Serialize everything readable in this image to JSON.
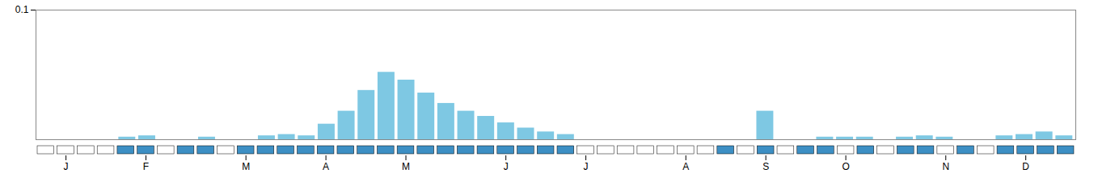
{
  "chart_data": {
    "type": "bar",
    "categories": [
      null,
      "J",
      null,
      null,
      null,
      "F",
      null,
      null,
      null,
      null,
      "M",
      null,
      null,
      null,
      "A",
      null,
      null,
      null,
      "M",
      null,
      null,
      null,
      null,
      "J",
      null,
      null,
      null,
      "J",
      null,
      null,
      null,
      null,
      "A",
      null,
      null,
      null,
      "S",
      null,
      null,
      null,
      "O",
      null,
      null,
      null,
      null,
      "N",
      null,
      null,
      null,
      "D",
      null,
      null
    ],
    "values": [
      0,
      0,
      0,
      0,
      0.002,
      0.003,
      0,
      0,
      0.002,
      0,
      0,
      0.003,
      0.004,
      0.003,
      0.012,
      0.022,
      0.038,
      0.052,
      0.046,
      0.036,
      0.028,
      0.022,
      0.018,
      0.013,
      0.009,
      0.006,
      0.004,
      0,
      0,
      0,
      0,
      0,
      0,
      0,
      0,
      0,
      0.022,
      0,
      0,
      0.002,
      0.002,
      0.002,
      0,
      0.002,
      0.003,
      0.002,
      0,
      0,
      0.003,
      0.004,
      0.006,
      0.003
    ],
    "color": "#7ec8e3",
    "ylim": [
      0,
      0.1
    ],
    "yticks": [
      0.1
    ],
    "indicator": {
      "values": [
        0,
        0,
        0,
        0,
        1,
        1,
        0,
        1,
        1,
        0,
        1,
        1,
        1,
        1,
        1,
        1,
        1,
        1,
        1,
        1,
        1,
        1,
        1,
        1,
        1,
        1,
        1,
        0,
        0,
        0,
        0,
        0,
        0,
        0,
        1,
        0,
        1,
        0,
        1,
        1,
        0,
        1,
        0,
        1,
        1,
        0,
        1,
        0,
        1,
        1,
        1,
        1
      ],
      "colors": [
        "#ffffff",
        "#3d8fc4"
      ]
    }
  }
}
